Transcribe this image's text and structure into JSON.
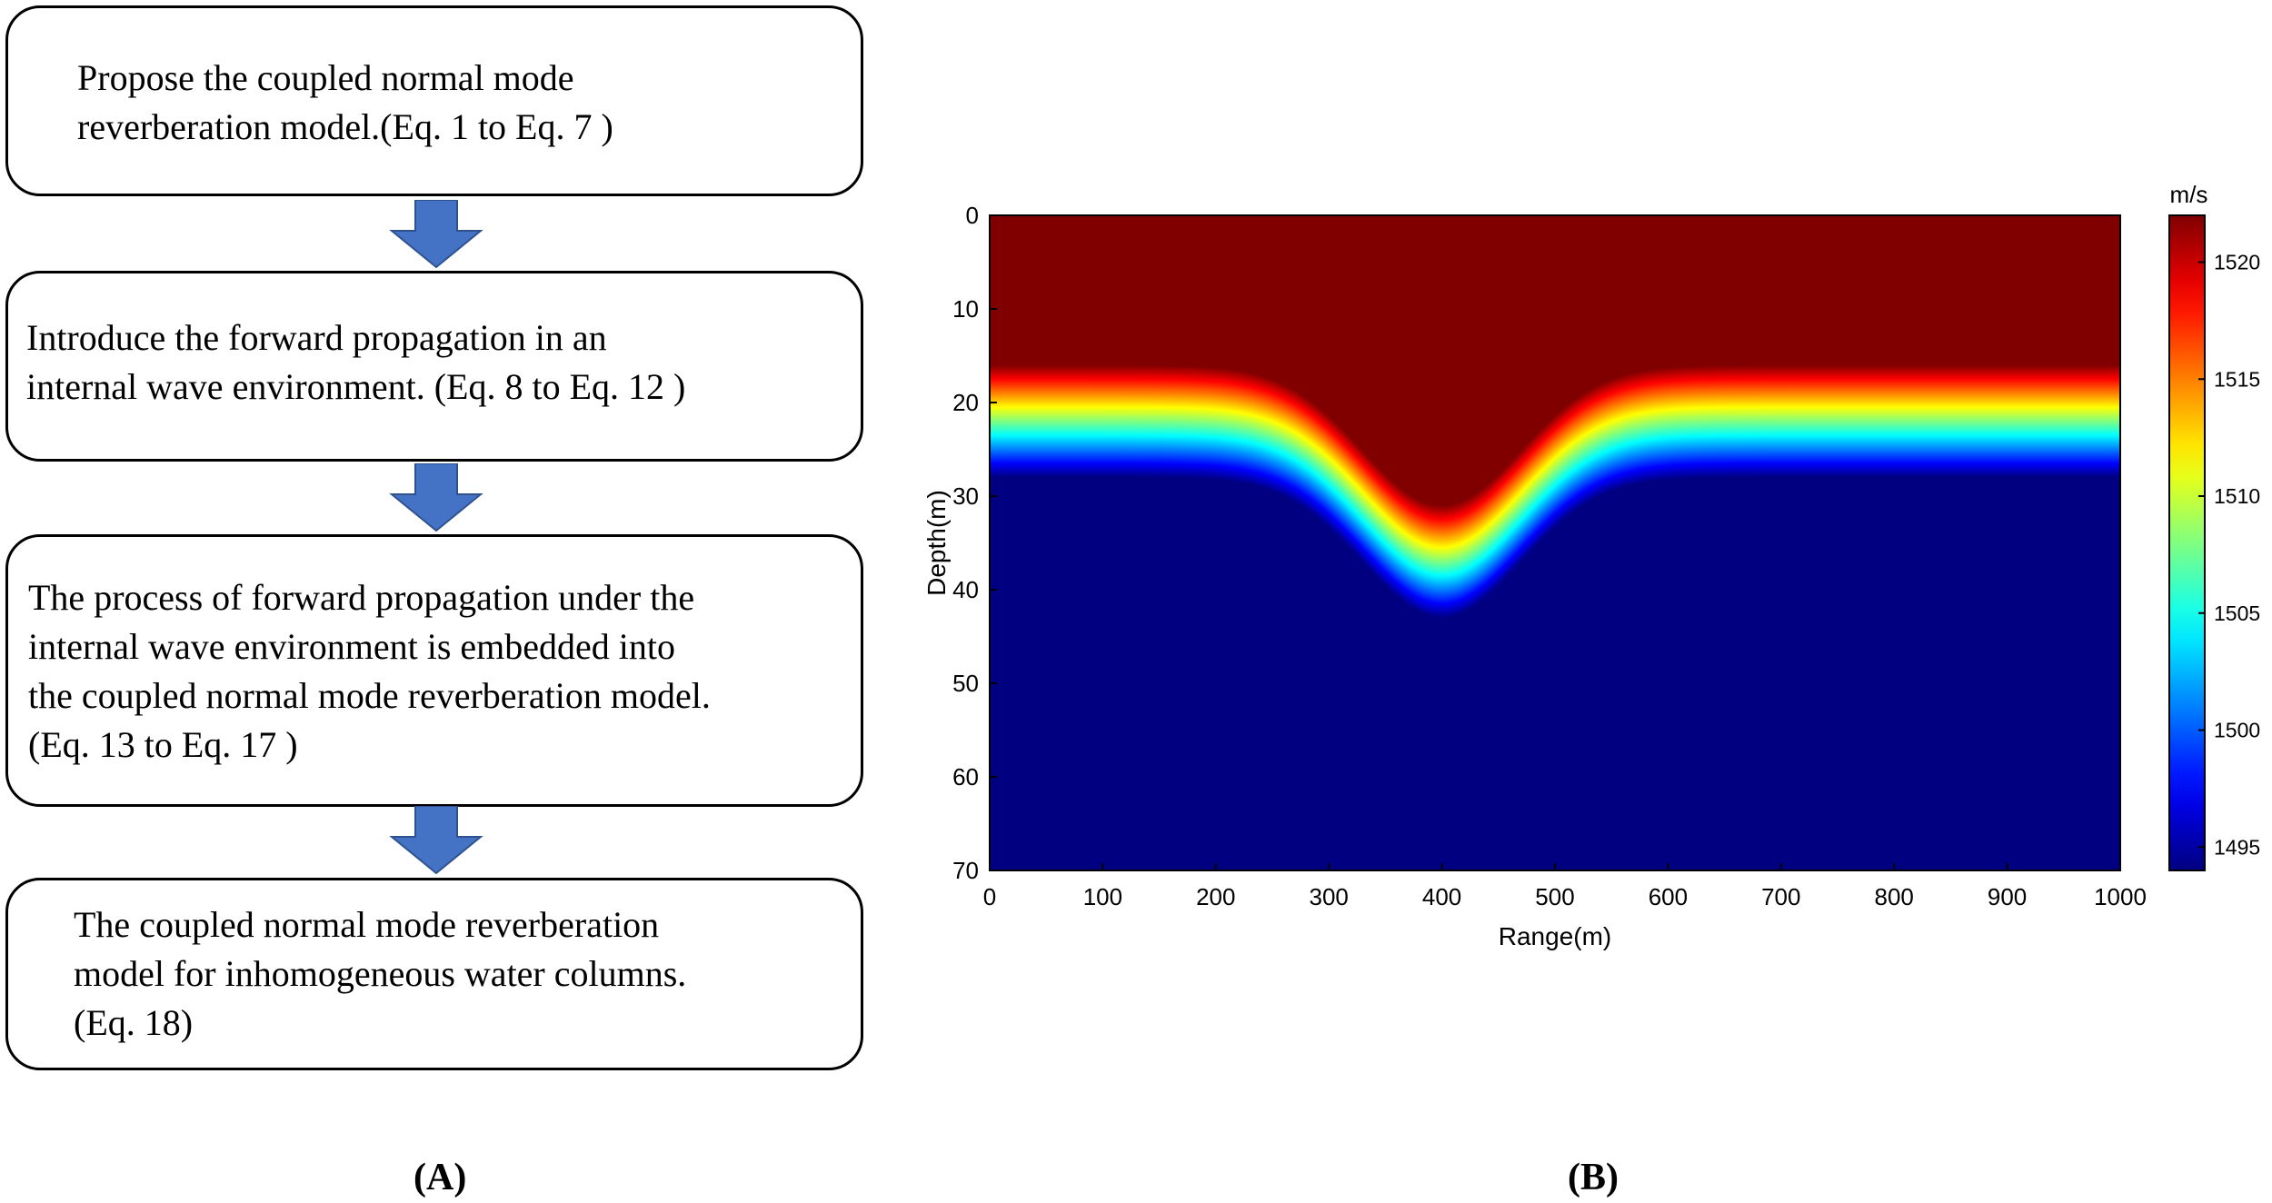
{
  "flowchart": {
    "steps": [
      {
        "lines": [
          "Propose the coupled normal mode",
          "reverberation model.(Eq. 1 to Eq. 7 )"
        ]
      },
      {
        "lines": [
          "Introduce the forward propagation in an",
          "internal wave environment. (Eq. 8 to Eq. 12 )"
        ]
      },
      {
        "lines": [
          "The process of forward propagation under the",
          "internal wave environment is embedded into",
          "the coupled normal mode reverberation model.",
          "(Eq. 13 to Eq. 17 )"
        ]
      },
      {
        "lines": [
          "The coupled normal mode reverberation",
          "model for inhomogeneous water columns.",
          "(Eq. 18)"
        ]
      }
    ],
    "arrow_color": "#4472C4",
    "label": "(A)"
  },
  "panel_b_label": "(B)",
  "chart_data": {
    "type": "heatmap",
    "xlabel": "Range(m)",
    "ylabel": "Depth(m)",
    "xlim": [
      0,
      1000
    ],
    "ylim": [
      0,
      70
    ],
    "y_reversed": true,
    "x_ticks": [
      0,
      100,
      200,
      300,
      400,
      500,
      600,
      700,
      800,
      900,
      1000
    ],
    "y_ticks": [
      0,
      10,
      20,
      30,
      40,
      50,
      60,
      70
    ],
    "colorbar": {
      "unit": "m/s",
      "range": [
        1494,
        1522
      ],
      "ticks": [
        1495,
        1500,
        1505,
        1510,
        1515,
        1520
      ],
      "colormap": "jet"
    },
    "field": {
      "description_values": {
        "upper_layer_speed": 1522,
        "lower_layer_speed": 1494,
        "thermocline_center_depth": 22,
        "thermocline_half_width": 6,
        "internal_wave_center_range": 400,
        "internal_wave_amplitude_depth": 15,
        "internal_wave_width": 70
      }
    }
  }
}
